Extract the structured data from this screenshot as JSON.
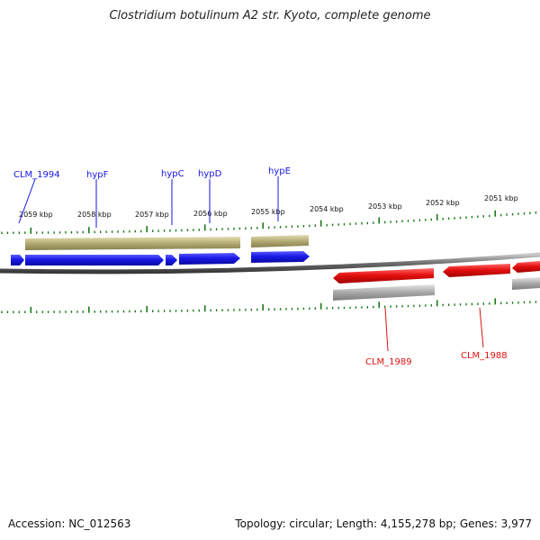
{
  "header": {
    "title": "Clostridium botulinum A2 str. Kyoto, complete genome"
  },
  "footer": {
    "accession": "Accession: NC_012563",
    "summary": "Topology: circular; Length: 4,155,278 bp; Genes: 3,977"
  },
  "colors": {
    "plus_strand": "#1515e6",
    "minus_strand": "#e01010",
    "plus_cds": "#b3aa72",
    "minus_cds": "#a8a8a8",
    "ticks": "#1a7a1a",
    "backbone": "#6e6e6e"
  },
  "scale_labels": [
    "2059 kbp",
    "2058 kbp",
    "2057 kbp",
    "2056 kbp",
    "2055 kbp",
    "2054 kbp",
    "2053 kbp",
    "2052 kbp",
    "2051 kbp"
  ],
  "genes_top": [
    "CLM_1994",
    "hypF",
    "hypC",
    "hypD",
    "hypE"
  ],
  "genes_bottom": [
    "CLM_1989",
    "CLM_1988"
  ]
}
